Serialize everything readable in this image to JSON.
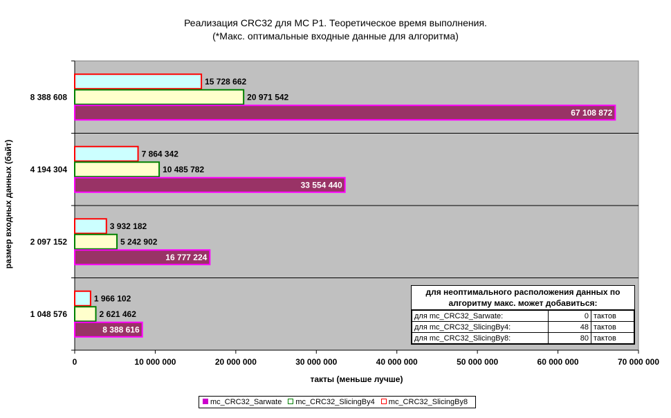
{
  "chart_data": {
    "type": "bar",
    "orientation": "horizontal",
    "title": "Реализация CRC32 для МС Р1. Теоретическое время выполнения.",
    "subtitle": "(*Макс. оптимальные входные данные для алгоритма)",
    "xlabel": "такты (меньше лучше)",
    "ylabel": "размер входных данных (байт)",
    "xlim": [
      0,
      70000000
    ],
    "xticks": [
      0,
      10000000,
      20000000,
      30000000,
      40000000,
      50000000,
      60000000,
      70000000
    ],
    "xtick_labels": [
      "0",
      "10 000 000",
      "20 000 000",
      "30 000 000",
      "40 000 000",
      "50 000 000",
      "60 000 000",
      "70 000 000"
    ],
    "categories": [
      "1 048 576",
      "2 097 152",
      "4 194 304",
      "8 388 608"
    ],
    "series": [
      {
        "name": "mc_CRC32_Sarwate",
        "values": [
          8388616,
          16777224,
          33554440,
          67108872
        ],
        "labels": [
          "8 388 616",
          "16 777 224",
          "33 554 440",
          "67 108 872"
        ],
        "fill": "#993366",
        "border": "#ff00ff",
        "label_color": "#ffffff"
      },
      {
        "name": "mc_CRC32_SlicingBy4",
        "values": [
          2621462,
          5242902,
          10485782,
          20971542
        ],
        "labels": [
          "2 621 462",
          "5 242 902",
          "10 485 782",
          "20 971 542"
        ],
        "fill": "#ffffcc",
        "border": "#008000",
        "label_color": "#000000"
      },
      {
        "name": "mc_CRC32_SlicingBy8",
        "values": [
          1966102,
          3932182,
          7864342,
          15728662
        ],
        "labels": [
          "1 966 102",
          "3 932 182",
          "7 864 342",
          "15 728 662"
        ],
        "fill": "#ccffff",
        "border": "#ff0000",
        "label_color": "#000000"
      }
    ],
    "legend_placement": "bottom",
    "plot_background": "#c0c0c0",
    "grid": "horizontal-category-separators"
  },
  "note": {
    "header_line1": "для неоптимального расположения данных по",
    "header_line2": "алгоритму макс. может добавиться:",
    "rows": [
      {
        "label": "для mc_CRC32_Sarwate:",
        "value": "0",
        "unit": "тактов"
      },
      {
        "label": "для mc_CRC32_SlicingBy4:",
        "value": "48",
        "unit": "тактов"
      },
      {
        "label": "для mc_CRC32_SlicingBy8:",
        "value": "80",
        "unit": "тактов"
      }
    ]
  },
  "legend_items": [
    {
      "label": "mc_CRC32_Sarwate",
      "swatch_fill": "#cc00cc",
      "swatch_border": "#cc00cc"
    },
    {
      "label": "mc_CRC32_SlicingBy4",
      "swatch_fill": "#ffffff",
      "swatch_border": "#008000"
    },
    {
      "label": "mc_CRC32_SlicingBy8",
      "swatch_fill": "#ffffff",
      "swatch_border": "#ff0000"
    }
  ]
}
